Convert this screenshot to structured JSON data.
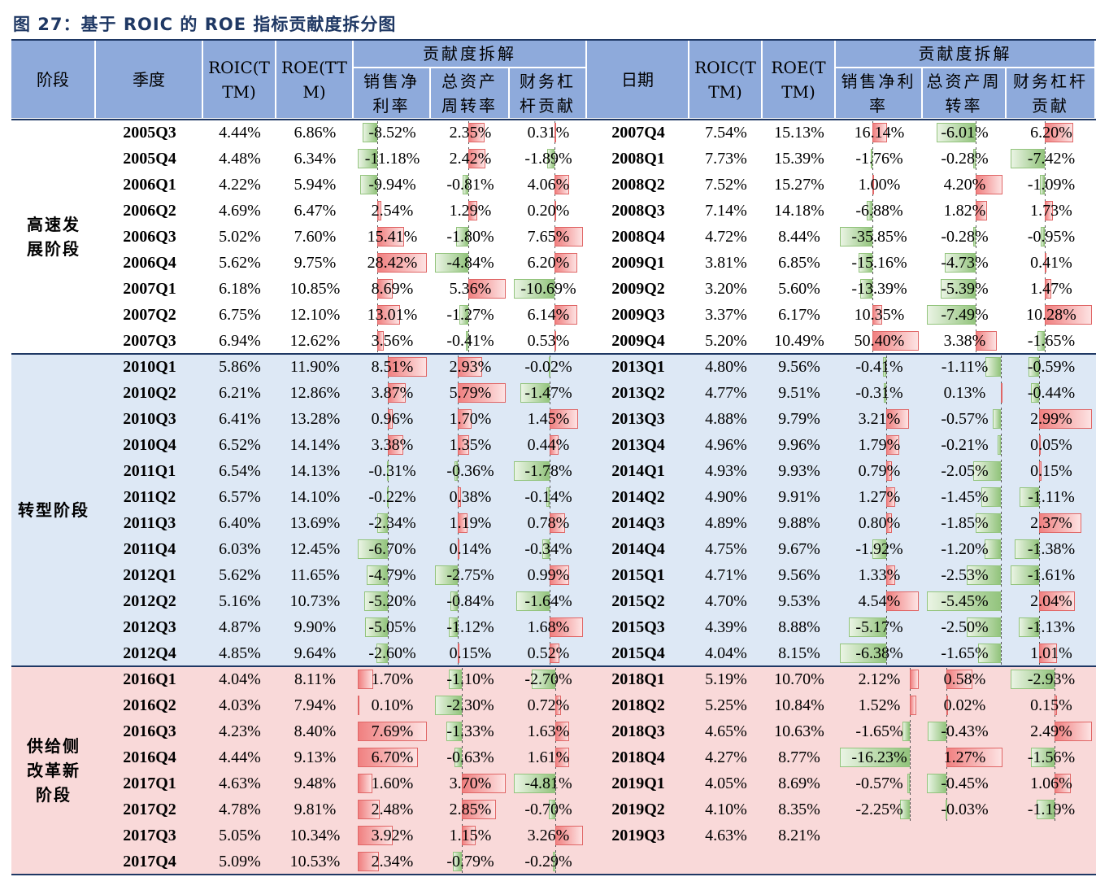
{
  "title": "图 27：基于 ROIC 的 ROE 指标贡献度拆分图",
  "header": {
    "left": [
      "阶段",
      "季度",
      "ROIC(TTM)",
      "ROE(TTM)"
    ],
    "group_left": "贡献度拆解",
    "sub_left": [
      "销售净利率",
      "总资产周转率",
      "财务杠杆贡献"
    ],
    "right": [
      "日期",
      "ROIC(TTM)",
      "ROE(TTM)"
    ],
    "group_right": "贡献度拆解",
    "sub_right": [
      "销售净利率",
      "总资产周转率",
      "财务杠杆贡献"
    ]
  },
  "table": {
    "groups": [
      {
        "stage": "高速发展阶段",
        "rows": [
          [
            "2005Q3",
            "4.44%",
            "6.86%",
            "-8.52%",
            "2.35%",
            "0.31%",
            "2007Q4",
            "7.54%",
            "15.13%",
            "16.14%",
            "-6.01%",
            "6.20%"
          ],
          [
            "2005Q4",
            "4.48%",
            "6.34%",
            "-11.18%",
            "2.42%",
            "-1.89%",
            "2008Q1",
            "7.73%",
            "15.39%",
            "-1.76%",
            "-0.28%",
            "-7.42%"
          ],
          [
            "2006Q1",
            "4.22%",
            "5.94%",
            "-9.94%",
            "-0.81%",
            "4.06%",
            "2008Q2",
            "7.52%",
            "15.27%",
            "1.00%",
            "4.20%",
            "-1.09%"
          ],
          [
            "2006Q2",
            "4.69%",
            "6.47%",
            "2.54%",
            "1.29%",
            "0.20%",
            "2008Q3",
            "7.14%",
            "14.18%",
            "-6.88%",
            "1.82%",
            "1.73%"
          ],
          [
            "2006Q3",
            "5.02%",
            "7.60%",
            "15.41%",
            "-1.80%",
            "7.65%",
            "2008Q4",
            "4.72%",
            "8.44%",
            "-35.85%",
            "-0.28%",
            "-0.95%"
          ],
          [
            "2006Q4",
            "5.62%",
            "9.75%",
            "28.42%",
            "-4.84%",
            "6.20%",
            "2009Q1",
            "3.81%",
            "6.85%",
            "-15.16%",
            "-4.73%",
            "0.41%"
          ],
          [
            "2007Q1",
            "6.18%",
            "10.85%",
            "8.69%",
            "5.36%",
            "-10.69%",
            "2009Q2",
            "3.20%",
            "5.60%",
            "-13.39%",
            "-5.39%",
            "1.47%"
          ],
          [
            "2007Q2",
            "6.75%",
            "12.10%",
            "13.01%",
            "-1.27%",
            "6.14%",
            "2009Q3",
            "3.37%",
            "6.17%",
            "10.35%",
            "-7.49%",
            "10.28%"
          ],
          [
            "2007Q3",
            "6.94%",
            "12.62%",
            "3.56%",
            "-0.41%",
            "0.53%",
            "2009Q4",
            "5.20%",
            "10.49%",
            "50.40%",
            "3.38%",
            "-1.65%"
          ]
        ]
      },
      {
        "stage": "转型阶段",
        "rows": [
          [
            "2010Q1",
            "5.86%",
            "11.90%",
            "8.51%",
            "2.93%",
            "-0.02%",
            "2013Q1",
            "4.80%",
            "9.56%",
            "-0.41%",
            "-1.11%",
            "-0.59%"
          ],
          [
            "2010Q2",
            "6.21%",
            "12.86%",
            "3.87%",
            "5.79%",
            "-1.47%",
            "2013Q2",
            "4.77%",
            "9.51%",
            "-0.31%",
            "0.13%",
            "-0.44%"
          ],
          [
            "2010Q3",
            "6.41%",
            "13.28%",
            "0.96%",
            "1.70%",
            "1.45%",
            "2013Q3",
            "4.88%",
            "9.79%",
            "3.21%",
            "-0.57%",
            "2.99%"
          ],
          [
            "2010Q4",
            "6.52%",
            "14.14%",
            "3.38%",
            "1.35%",
            "0.44%",
            "2013Q4",
            "4.96%",
            "9.96%",
            "1.79%",
            "-0.21%",
            "0.05%"
          ],
          [
            "2011Q1",
            "6.54%",
            "14.13%",
            "-0.31%",
            "-0.36%",
            "-1.78%",
            "2014Q1",
            "4.93%",
            "9.93%",
            "0.79%",
            "-2.05%",
            "0.15%"
          ],
          [
            "2011Q2",
            "6.57%",
            "14.10%",
            "-0.22%",
            "0.38%",
            "-0.14%",
            "2014Q2",
            "4.90%",
            "9.91%",
            "1.27%",
            "-1.45%",
            "-1.11%"
          ],
          [
            "2011Q3",
            "6.40%",
            "13.69%",
            "-2.34%",
            "1.19%",
            "0.78%",
            "2014Q3",
            "4.89%",
            "9.88%",
            "0.80%",
            "-1.85%",
            "2.37%"
          ],
          [
            "2011Q4",
            "6.03%",
            "12.45%",
            "-6.70%",
            "0.14%",
            "-0.34%",
            "2014Q4",
            "4.75%",
            "9.67%",
            "-1.92%",
            "-1.20%",
            "-1.38%"
          ],
          [
            "2012Q1",
            "5.62%",
            "11.65%",
            "-4.79%",
            "-2.75%",
            "0.99%",
            "2015Q1",
            "4.71%",
            "9.56%",
            "1.33%",
            "-2.53%",
            "-1.61%"
          ],
          [
            "2012Q2",
            "5.16%",
            "10.73%",
            "-5.20%",
            "-0.84%",
            "-1.64%",
            "2015Q2",
            "4.70%",
            "9.53%",
            "4.54%",
            "-5.45%",
            "2.04%"
          ],
          [
            "2012Q3",
            "4.87%",
            "9.90%",
            "-5.05%",
            "-1.12%",
            "1.68%",
            "2015Q3",
            "4.39%",
            "8.88%",
            "-5.17%",
            "-2.50%",
            "-1.13%"
          ],
          [
            "2012Q4",
            "4.85%",
            "9.64%",
            "-2.60%",
            "0.15%",
            "0.52%",
            "2015Q4",
            "4.04%",
            "8.15%",
            "-6.38%",
            "-1.65%",
            "1.01%"
          ]
        ]
      },
      {
        "stage": "供给侧改革新阶段",
        "rows": [
          [
            "2016Q1",
            "4.04%",
            "8.11%",
            "1.70%",
            "-1.10%",
            "-2.70%",
            "2018Q1",
            "5.19%",
            "10.70%",
            "2.12%",
            "0.58%",
            "-2.93%"
          ],
          [
            "2016Q2",
            "4.03%",
            "7.94%",
            "0.10%",
            "-2.30%",
            "0.72%",
            "2018Q2",
            "5.25%",
            "10.84%",
            "1.52%",
            "0.02%",
            "0.15%"
          ],
          [
            "2016Q3",
            "4.23%",
            "8.40%",
            "7.69%",
            "-1.33%",
            "1.63%",
            "2018Q3",
            "4.65%",
            "10.63%",
            "-1.65%",
            "-0.43%",
            "2.49%"
          ],
          [
            "2016Q4",
            "4.44%",
            "9.13%",
            "6.70%",
            "-0.63%",
            "1.61%",
            "2018Q4",
            "4.27%",
            "8.77%",
            "-16.23%",
            "1.27%",
            "-1.56%"
          ],
          [
            "2017Q1",
            "4.63%",
            "9.48%",
            "1.60%",
            "3.70%",
            "-4.81%",
            "2019Q1",
            "4.05%",
            "8.69%",
            "-0.57%",
            "-0.45%",
            "1.06%"
          ],
          [
            "2017Q2",
            "4.78%",
            "9.81%",
            "2.48%",
            "2.85%",
            "-0.70%",
            "2019Q2",
            "4.10%",
            "8.35%",
            "-2.25%",
            "-0.03%",
            "-1.19%"
          ],
          [
            "2017Q3",
            "5.05%",
            "10.34%",
            "3.92%",
            "1.15%",
            "3.26%",
            "2019Q3",
            "4.63%",
            "8.21%"
          ],
          [
            "2017Q4",
            "5.09%",
            "10.53%",
            "2.34%",
            "-0.79%",
            "-0.29%"
          ]
        ]
      }
    ]
  }
}
